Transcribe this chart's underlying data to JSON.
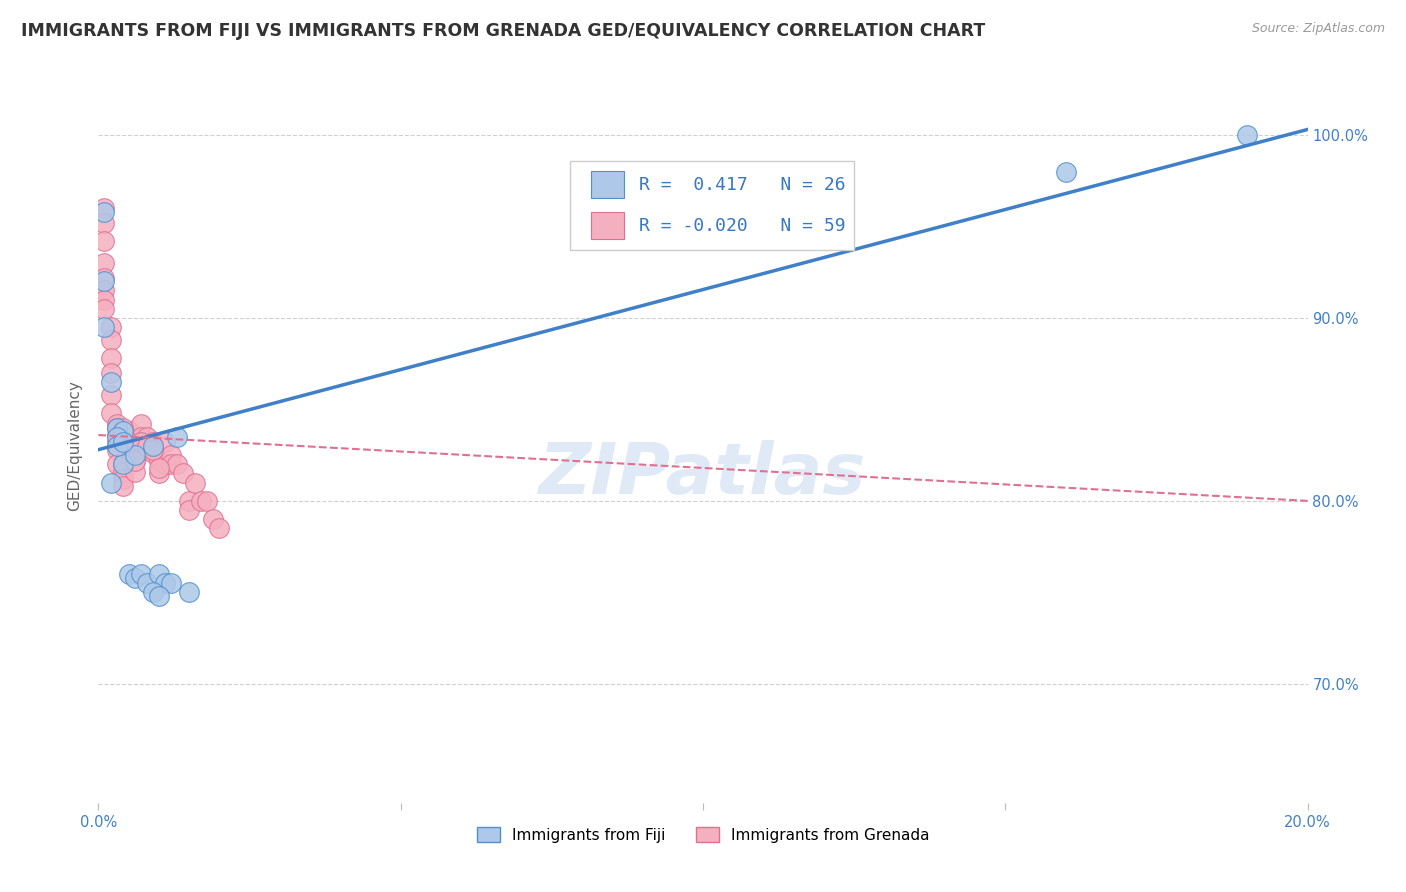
{
  "title": "IMMIGRANTS FROM FIJI VS IMMIGRANTS FROM GRENADA GED/EQUIVALENCY CORRELATION CHART",
  "source": "Source: ZipAtlas.com",
  "ylabel": "GED/Equivalency",
  "xlim": [
    0.0,
    0.2
  ],
  "ylim": [
    0.635,
    1.025
  ],
  "yticks": [
    0.7,
    0.8,
    0.9,
    1.0
  ],
  "fiji_R": 0.417,
  "fiji_N": 26,
  "grenada_R": -0.02,
  "grenada_N": 59,
  "fiji_color": "#adc8e8",
  "grenada_color": "#f5b0c0",
  "fiji_edge_color": "#5090d0",
  "grenada_edge_color": "#e07090",
  "fiji_line_color": "#4080c8",
  "grenada_line_color": "#e07090",
  "background_color": "#ffffff",
  "watermark": "ZIPatlas",
  "fiji_trend_x": [
    0.0,
    0.2
  ],
  "fiji_trend_y": [
    0.828,
    1.003
  ],
  "grenada_trend_x": [
    0.0,
    0.2
  ],
  "grenada_trend_y": [
    0.836,
    0.8
  ],
  "grid_color": "#d0d0d0",
  "title_fontsize": 12.5,
  "axis_label_fontsize": 11,
  "tick_fontsize": 10.5,
  "legend_fontsize": 13,
  "fiji_x": [
    0.001,
    0.001,
    0.001,
    0.002,
    0.003,
    0.004,
    0.004,
    0.006,
    0.009,
    0.013,
    0.003,
    0.003,
    0.004,
    0.002,
    0.005,
    0.006,
    0.007,
    0.008,
    0.01,
    0.011,
    0.012,
    0.015,
    0.009,
    0.01,
    0.16,
    0.19
  ],
  "fiji_y": [
    0.958,
    0.92,
    0.895,
    0.865,
    0.84,
    0.838,
    0.82,
    0.825,
    0.83,
    0.835,
    0.835,
    0.83,
    0.832,
    0.81,
    0.76,
    0.758,
    0.76,
    0.755,
    0.76,
    0.755,
    0.755,
    0.75,
    0.75,
    0.748,
    0.98,
    1.0
  ],
  "grenada_x": [
    0.001,
    0.001,
    0.001,
    0.001,
    0.001,
    0.001,
    0.001,
    0.001,
    0.002,
    0.002,
    0.002,
    0.002,
    0.002,
    0.002,
    0.003,
    0.003,
    0.003,
    0.003,
    0.003,
    0.004,
    0.004,
    0.004,
    0.004,
    0.005,
    0.005,
    0.005,
    0.006,
    0.006,
    0.006,
    0.007,
    0.007,
    0.007,
    0.008,
    0.008,
    0.009,
    0.009,
    0.01,
    0.01,
    0.011,
    0.011,
    0.012,
    0.012,
    0.013,
    0.014,
    0.015,
    0.015,
    0.016,
    0.017,
    0.018,
    0.019,
    0.02,
    0.003,
    0.004,
    0.005,
    0.006,
    0.007,
    0.008,
    0.009,
    0.01
  ],
  "grenada_y": [
    0.96,
    0.952,
    0.942,
    0.93,
    0.922,
    0.915,
    0.91,
    0.905,
    0.895,
    0.888,
    0.878,
    0.87,
    0.858,
    0.848,
    0.842,
    0.836,
    0.832,
    0.828,
    0.82,
    0.82,
    0.816,
    0.812,
    0.808,
    0.838,
    0.832,
    0.828,
    0.828,
    0.822,
    0.816,
    0.842,
    0.835,
    0.828,
    0.835,
    0.828,
    0.832,
    0.826,
    0.822,
    0.815,
    0.832,
    0.82,
    0.825,
    0.82,
    0.82,
    0.815,
    0.8,
    0.795,
    0.81,
    0.8,
    0.8,
    0.79,
    0.785,
    0.84,
    0.84,
    0.832,
    0.822,
    0.832,
    0.83,
    0.828,
    0.818
  ]
}
